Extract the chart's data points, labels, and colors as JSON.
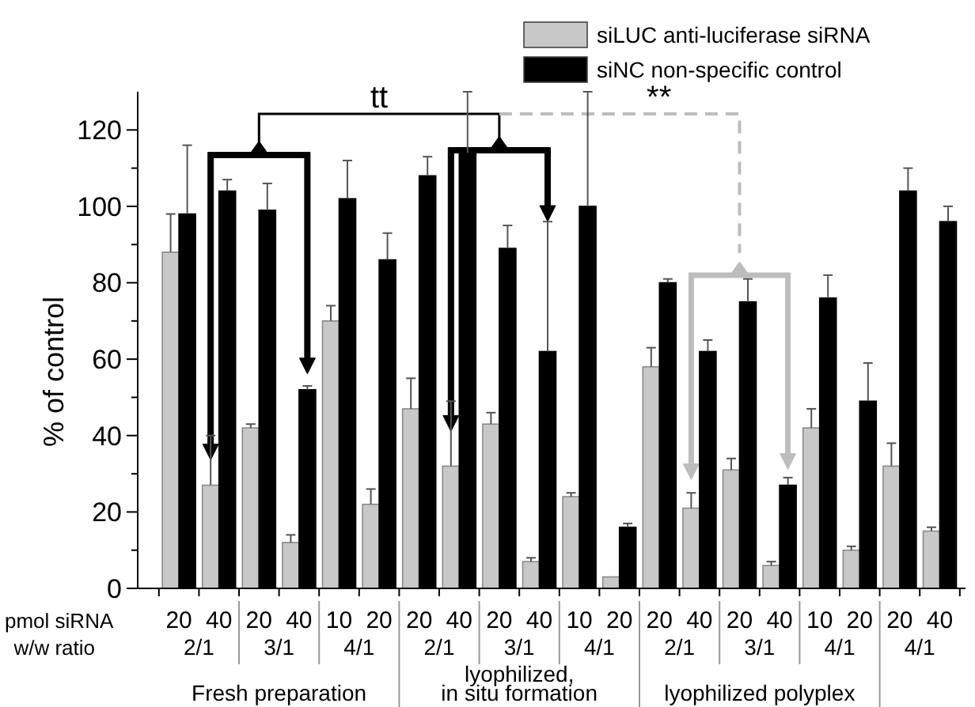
{
  "chart_data": {
    "type": "bar",
    "ylabel": "% of control",
    "categories": [
      "20",
      "40",
      "20",
      "40",
      "10",
      "20",
      "20",
      "40",
      "20",
      "40",
      "10",
      "20",
      "20",
      "40",
      "20",
      "40",
      "10",
      "20",
      "20",
      "40"
    ],
    "series": [
      {
        "name": "siLUC anti-luciferase siRNA",
        "color": "#c8c8c8",
        "values": [
          88,
          27,
          42,
          12,
          70,
          22,
          47,
          32,
          43,
          7,
          24,
          3,
          58,
          21,
          31,
          6,
          42,
          10,
          32,
          15
        ],
        "errors": [
          [
            88,
            98
          ],
          [
            27,
            40
          ],
          [
            42,
            43
          ],
          [
            12,
            14
          ],
          [
            70,
            74
          ],
          [
            22,
            26
          ],
          [
            47,
            55
          ],
          [
            32,
            49
          ],
          [
            43,
            46
          ],
          [
            7,
            8
          ],
          [
            24,
            25
          ],
          null,
          [
            58,
            63
          ],
          [
            21,
            25
          ],
          [
            31,
            34
          ],
          [
            6,
            7
          ],
          [
            42,
            47
          ],
          [
            10,
            11
          ],
          [
            32,
            38
          ],
          [
            15,
            16
          ]
        ]
      },
      {
        "name": "siNC non-specific control",
        "color": "#000000",
        "values": [
          98,
          104,
          99,
          52,
          102,
          86,
          108,
          114,
          89,
          62,
          100,
          16,
          80,
          62,
          75,
          27,
          76,
          49,
          104,
          96
        ],
        "errors": [
          [
            98,
            116
          ],
          [
            104,
            107
          ],
          [
            99,
            106
          ],
          [
            52,
            53
          ],
          [
            102,
            112
          ],
          [
            86,
            93
          ],
          [
            108,
            113
          ],
          [
            114,
            130
          ],
          [
            89,
            95
          ],
          [
            62,
            96
          ],
          [
            100,
            130
          ],
          [
            16,
            17
          ],
          [
            80,
            81
          ],
          [
            62,
            65
          ],
          [
            75,
            81
          ],
          [
            27,
            29
          ],
          [
            76,
            82
          ],
          [
            49,
            59
          ],
          [
            104,
            110
          ],
          [
            96,
            100
          ]
        ]
      }
    ],
    "ylim": [
      0,
      130
    ],
    "yticks": [
      0,
      {
        "value": 10,
        "label": null
      },
      20,
      {
        "value": 30,
        "label": null
      },
      40,
      {
        "value": 50,
        "label": null
      },
      60,
      {
        "value": 70,
        "label": null
      },
      80,
      {
        "value": 90,
        "label": null
      },
      100,
      {
        "value": 110,
        "label": null
      },
      120
    ],
    "legend": "top right",
    "grid": false,
    "annotations": [
      "pmol siRNA",
      "w/w ratio",
      "2/1",
      "3/1",
      "4/1",
      "2/1",
      "3/1",
      "4/1",
      "2/1",
      "3/1",
      "4/1",
      "4/1",
      "Fresh preparation",
      "lyophilized,\nin situ formation",
      "lyophilized polyplex",
      "tt",
      "**"
    ]
  }
}
